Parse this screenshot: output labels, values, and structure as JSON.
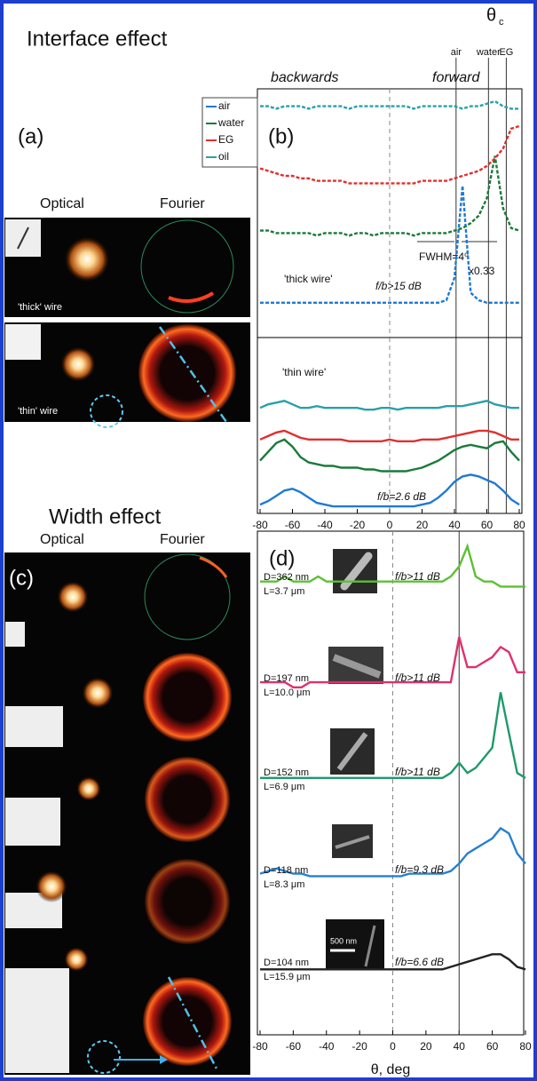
{
  "figure": {
    "interface_title": "Interface effect",
    "width_title": "Width effect",
    "panel_a": "(a)",
    "panel_c": "(c)",
    "optical_a": "Optical",
    "fourier_a": "Fourier",
    "optical_c": "Optical",
    "fourier_c": "Fourier",
    "thick_wire": "'thick' wire",
    "thin_wire": "'thin' wire"
  },
  "chart_data": [
    {
      "type": "line",
      "panel_label": "(b)",
      "line_style": "dashed",
      "legend": "outside-left",
      "header": [
        "backwards",
        "forward"
      ],
      "theta": "θ",
      "theta_sub": "c",
      "annotations": [
        "'thick wire'",
        "f/b>15 dB",
        "FWHM=4⁰",
        "x0.33"
      ],
      "reference_lines": [
        {
          "x": 41,
          "label": "air"
        },
        {
          "x": 61,
          "label": "water"
        },
        {
          "x": 72,
          "label": "EG"
        }
      ],
      "xlim": [
        -80,
        80
      ],
      "ylim": [
        0,
        10
      ],
      "x": [
        -80,
        -75,
        -70,
        -65,
        -60,
        -55,
        -50,
        -45,
        -40,
        -35,
        -30,
        -25,
        -20,
        -15,
        -10,
        -5,
        0,
        5,
        10,
        15,
        20,
        25,
        30,
        35,
        40,
        45,
        50,
        55,
        60,
        65,
        70,
        75,
        80
      ],
      "series": [
        {
          "name": "air",
          "color": "#1f7ad4",
          "values": [
            1.4,
            1.4,
            1.4,
            1.4,
            1.4,
            1.4,
            1.4,
            1.4,
            1.4,
            1.4,
            1.4,
            1.4,
            1.4,
            1.4,
            1.4,
            1.4,
            1.4,
            1.4,
            1.4,
            1.4,
            1.4,
            1.4,
            1.4,
            1.5,
            2.4,
            6.1,
            1.8,
            1.5,
            1.4,
            1.4,
            1.4,
            1.4,
            1.4
          ]
        },
        {
          "name": "water",
          "color": "#1b7a3a",
          "values": [
            4.3,
            4.3,
            4.2,
            4.2,
            4.2,
            4.2,
            4.2,
            4.1,
            4.2,
            4.2,
            4.2,
            4.1,
            4.2,
            4.2,
            4.1,
            4.2,
            4.2,
            4.2,
            4.2,
            4.1,
            4.2,
            4.2,
            4.2,
            4.2,
            4.3,
            4.4,
            4.6,
            4.9,
            5.6,
            7.3,
            5.2,
            4.4,
            4.3
          ]
        },
        {
          "name": "EG",
          "color": "#e03030",
          "values": [
            6.8,
            6.7,
            6.6,
            6.5,
            6.5,
            6.4,
            6.4,
            6.3,
            6.3,
            6.3,
            6.3,
            6.2,
            6.2,
            6.2,
            6.2,
            6.2,
            6.2,
            6.2,
            6.2,
            6.2,
            6.3,
            6.3,
            6.3,
            6.3,
            6.4,
            6.5,
            6.6,
            6.7,
            6.9,
            7.2,
            7.6,
            8.4,
            8.5
          ]
        },
        {
          "name": "oil",
          "color": "#2aa0a8",
          "values": [
            9.3,
            9.3,
            9.2,
            9.3,
            9.3,
            9.3,
            9.2,
            9.3,
            9.3,
            9.3,
            9.3,
            9.2,
            9.3,
            9.3,
            9.3,
            9.3,
            9.3,
            9.3,
            9.3,
            9.2,
            9.3,
            9.3,
            9.3,
            9.3,
            9.3,
            9.2,
            9.3,
            9.3,
            9.4,
            9.5,
            9.3,
            9.2,
            9.2
          ]
        }
      ]
    },
    {
      "type": "line",
      "annotations": [
        "'thin wire'",
        "f/b=2.6 dB"
      ],
      "xlim": [
        -80,
        80
      ],
      "ylim": [
        0,
        10
      ],
      "xticks": [
        -80,
        -60,
        -40,
        -20,
        0,
        20,
        40,
        60,
        80
      ],
      "x": [
        -80,
        -75,
        -70,
        -65,
        -60,
        -55,
        -50,
        -45,
        -40,
        -35,
        -30,
        -25,
        -20,
        -15,
        -10,
        -5,
        0,
        5,
        10,
        15,
        20,
        25,
        30,
        35,
        40,
        45,
        50,
        55,
        60,
        65,
        70,
        75,
        80
      ],
      "series": [
        {
          "color": "#1f7ad4",
          "values": [
            0.5,
            0.7,
            1.0,
            1.3,
            1.4,
            1.2,
            0.9,
            0.6,
            0.5,
            0.4,
            0.4,
            0.4,
            0.4,
            0.4,
            0.4,
            0.4,
            0.4,
            0.4,
            0.4,
            0.4,
            0.5,
            0.6,
            0.9,
            1.3,
            1.8,
            2.1,
            2.2,
            2.1,
            1.9,
            1.7,
            1.3,
            0.8,
            0.5
          ]
        },
        {
          "color": "#1b7a3a",
          "values": [
            3.0,
            3.5,
            4.0,
            4.2,
            3.8,
            3.2,
            2.9,
            2.8,
            2.7,
            2.7,
            2.6,
            2.6,
            2.6,
            2.5,
            2.5,
            2.4,
            2.4,
            2.4,
            2.4,
            2.5,
            2.6,
            2.8,
            3.0,
            3.3,
            3.6,
            3.8,
            3.9,
            3.8,
            3.7,
            4.0,
            4.1,
            3.5,
            3.0
          ]
        },
        {
          "color": "#e03030",
          "values": [
            4.2,
            4.4,
            4.6,
            4.7,
            4.5,
            4.3,
            4.2,
            4.2,
            4.2,
            4.2,
            4.2,
            4.1,
            4.1,
            4.1,
            4.1,
            4.1,
            4.2,
            4.1,
            4.1,
            4.1,
            4.2,
            4.2,
            4.2,
            4.3,
            4.4,
            4.5,
            4.6,
            4.7,
            4.7,
            4.6,
            4.4,
            4.2,
            4.2
          ]
        },
        {
          "color": "#2aa0a8",
          "values": [
            6.0,
            6.2,
            6.3,
            6.4,
            6.2,
            6.0,
            6.0,
            6.1,
            6.0,
            6.0,
            6.0,
            6.0,
            6.0,
            5.9,
            5.9,
            6.0,
            6.0,
            5.9,
            6.0,
            6.0,
            6.0,
            6.0,
            6.0,
            6.1,
            6.1,
            6.1,
            6.2,
            6.3,
            6.4,
            6.2,
            6.1,
            6.0,
            6.0
          ]
        }
      ]
    },
    {
      "type": "line",
      "panel_label": "(d)",
      "xlabel": "θ, deg",
      "scale_bar": "500 nm",
      "reference_lines": [
        {
          "x": 40
        }
      ],
      "xlim": [
        -80,
        80
      ],
      "ylim": [
        0,
        10
      ],
      "xticks": [
        -80,
        -60,
        -40,
        -20,
        0,
        20,
        40,
        60,
        80
      ],
      "x": [
        -80,
        -75,
        -70,
        -65,
        -60,
        -55,
        -50,
        -45,
        -40,
        -35,
        -30,
        -25,
        -20,
        -15,
        -10,
        -5,
        0,
        5,
        10,
        15,
        20,
        25,
        30,
        35,
        40,
        45,
        50,
        55,
        60,
        65,
        70,
        75,
        80
      ],
      "curve_labels": [
        {
          "D": "D=362 nm",
          "L": "L=3.7 μm",
          "fb": "f/b>11 dB"
        },
        {
          "D": "D=197 nm",
          "L": "L=10.0 μm",
          "fb": "f/b>11 dB"
        },
        {
          "D": "D=152 nm",
          "L": "L=6.9 μm",
          "fb": "f/b>11 dB"
        },
        {
          "D": "D=118 nm",
          "L": "L=8.3 μm",
          "fb": "f/b=9.3 dB"
        },
        {
          "D": "D=104 nm",
          "L": "L=15.9 μm",
          "fb": "f/b=6.6 dB"
        }
      ],
      "series": [
        {
          "color": "#5cc034",
          "values": [
            9.0,
            9.0,
            9.0,
            9.1,
            9.0,
            9.0,
            9.0,
            9.1,
            9.0,
            9.0,
            9.0,
            9.0,
            9.0,
            9.0,
            9.0,
            9.0,
            9.0,
            9.0,
            9.0,
            9.0,
            9.0,
            9.0,
            9.0,
            9.1,
            9.3,
            9.7,
            9.1,
            9.0,
            9.0,
            8.9,
            8.9,
            8.9,
            8.9
          ]
        },
        {
          "color": "#e0306a",
          "values": [
            7.0,
            7.0,
            7.0,
            7.0,
            6.9,
            6.9,
            7.0,
            7.0,
            7.0,
            7.0,
            7.0,
            7.0,
            7.0,
            7.0,
            7.0,
            7.0,
            7.0,
            7.0,
            7.0,
            7.0,
            7.0,
            7.0,
            7.0,
            7.0,
            7.9,
            7.3,
            7.3,
            7.4,
            7.5,
            7.7,
            7.6,
            7.2,
            7.2
          ]
        },
        {
          "color": "#1e9a6a",
          "values": [
            5.1,
            5.1,
            5.1,
            5.1,
            5.1,
            5.1,
            5.1,
            5.1,
            5.1,
            5.1,
            5.1,
            5.1,
            5.1,
            5.1,
            5.1,
            5.1,
            5.1,
            5.1,
            5.1,
            5.1,
            5.1,
            5.1,
            5.1,
            5.2,
            5.4,
            5.2,
            5.3,
            5.5,
            5.7,
            6.8,
            6.0,
            5.2,
            5.1
          ]
        },
        {
          "color": "#2680d0",
          "values": [
            3.2,
            3.25,
            3.3,
            3.25,
            3.2,
            3.2,
            3.15,
            3.15,
            3.15,
            3.15,
            3.15,
            3.15,
            3.15,
            3.15,
            3.15,
            3.15,
            3.15,
            3.15,
            3.2,
            3.2,
            3.2,
            3.2,
            3.2,
            3.25,
            3.4,
            3.6,
            3.7,
            3.8,
            3.9,
            4.1,
            4.0,
            3.6,
            3.4
          ]
        },
        {
          "color": "#222222",
          "values": [
            1.3,
            1.3,
            1.3,
            1.3,
            1.3,
            1.3,
            1.3,
            1.3,
            1.3,
            1.3,
            1.3,
            1.3,
            1.3,
            1.3,
            1.3,
            1.3,
            1.3,
            1.3,
            1.3,
            1.3,
            1.3,
            1.3,
            1.3,
            1.35,
            1.4,
            1.45,
            1.5,
            1.55,
            1.6,
            1.6,
            1.5,
            1.35,
            1.3
          ]
        }
      ]
    }
  ]
}
